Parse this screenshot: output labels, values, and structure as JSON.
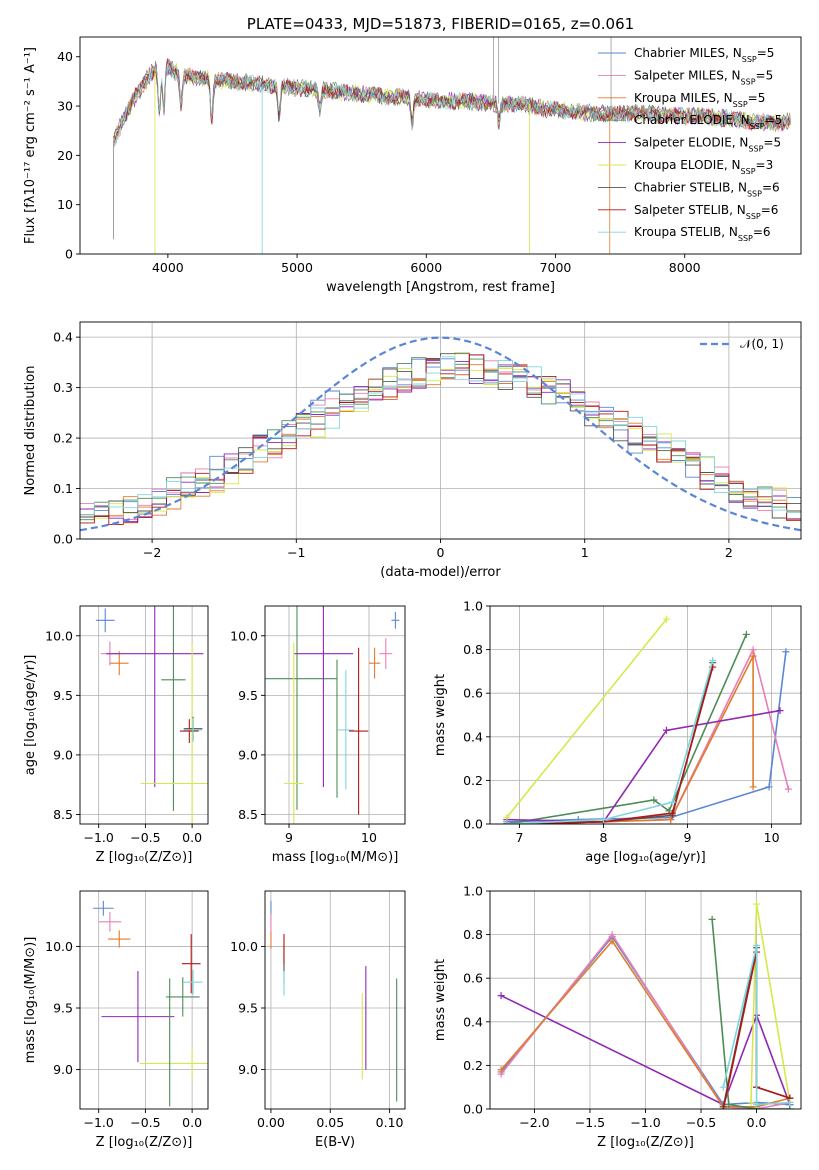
{
  "chart_data": [
    {
      "id": "spectrum",
      "type": "line",
      "title": "PLATE=0433, MJD=51873, FIBERID=0165, z=0.061",
      "xlabel": "wavelength [Angstrom, rest frame]",
      "ylabel": "Flux [fλ10⁻¹⁷ erg cm⁻² s⁻¹ A⁻¹]",
      "xlim": [
        3320,
        8900
      ],
      "ylim": [
        0,
        44
      ],
      "xticks": [
        4000,
        5000,
        6000,
        7000,
        8000
      ],
      "yticks": [
        0,
        10,
        20,
        30,
        40
      ],
      "grid": false,
      "legend_position": "top-right",
      "envelope": {
        "x": [
          3580,
          3650,
          3750,
          3850,
          3950,
          4050,
          4150,
          4300,
          4500,
          4700,
          4900,
          5100,
          5300,
          5500,
          5700,
          5900,
          6100,
          6300,
          6500,
          6700,
          6900,
          7100,
          7300,
          7500,
          7700,
          7900,
          8100,
          8300,
          8500,
          8700,
          8820
        ],
        "y": [
          23,
          27,
          32,
          36,
          39,
          37,
          36,
          35.5,
          35,
          34.5,
          34,
          33.5,
          33,
          32.5,
          32,
          31.5,
          31,
          31,
          30.5,
          30.5,
          29.5,
          29,
          28.5,
          28.5,
          28.5,
          28,
          28,
          27.5,
          27,
          26.5,
          27
        ]
      },
      "series": [
        {
          "name": "Chabrier MILES, N_SSP=5",
          "color": "#5b86d6"
        },
        {
          "name": "Salpeter MILES, N_SSP=5",
          "color": "#e87fb6"
        },
        {
          "name": "Kroupa MILES, N_SSP=5",
          "color": "#e27b2c"
        },
        {
          "name": "Chabrier ELODIE, N_SSP=5",
          "color": "#4d8c57"
        },
        {
          "name": "Salpeter ELODIE, N_SSP=5",
          "color": "#9128b4"
        },
        {
          "name": "Kroupa ELODIE, N_SSP=3",
          "color": "#d6e84a"
        },
        {
          "name": "Chabrier STELIB, N_SSP=6",
          "color": "#555555"
        },
        {
          "name": "Salpeter STELIB, N_SSP=6",
          "color": "#b01818"
        },
        {
          "name": "Kroupa STELIB, N_SSP=6",
          "color": "#7fd6dc"
        }
      ]
    },
    {
      "id": "residuals",
      "type": "line",
      "xlabel": "(data-model)/error",
      "ylabel": "Normed distribution",
      "xlim": [
        -2.5,
        2.5
      ],
      "ylim": [
        0,
        0.43
      ],
      "xticks": [
        -2,
        -1,
        0,
        1,
        2
      ],
      "yticks": [
        0.0,
        0.1,
        0.2,
        0.3,
        0.4
      ],
      "grid": true,
      "legend_position": "top-right",
      "legend_label": "𝒩(0, 1)",
      "gaussian_color": "#5b86d6",
      "bin_width": 0.1
    },
    {
      "id": "age_vs_Z",
      "type": "scatter",
      "xlabel": "Z [log₁₀(Z/Z⊙)]",
      "ylabel": "age  [log₁₀(age/yr)]",
      "xlim": [
        -1.2,
        0.17
      ],
      "ylim": [
        8.42,
        10.25
      ],
      "xticks": [
        -1.0,
        -0.5,
        0.0
      ],
      "yticks": [
        8.5,
        9.0,
        9.5,
        10.0
      ],
      "grid": true,
      "points": [
        {
          "x": -0.93,
          "xerr": 0.1,
          "y": 10.13,
          "yerr": 0.1,
          "color": "#5b86d6"
        },
        {
          "x": -0.88,
          "xerr": 0.1,
          "y": 9.85,
          "yerr": 0.1,
          "color": "#e87fb6"
        },
        {
          "x": -0.78,
          "xerr": 0.1,
          "y": 9.77,
          "yerr": 0.1,
          "color": "#e27b2c"
        },
        {
          "x": -0.2,
          "xerr": 0.13,
          "y": 9.63,
          "yerr": 1.1,
          "color": "#4d8c57"
        },
        {
          "x": -0.4,
          "xerr": 0.52,
          "y": 9.85,
          "yerr": 1.12,
          "color": "#9128b4"
        },
        {
          "x": 0.0,
          "xerr": 0.55,
          "y": 8.76,
          "yerr": 1.18,
          "color": "#d6e84a"
        },
        {
          "x": 0.01,
          "xerr": 0.1,
          "y": 9.22,
          "yerr": 0.1,
          "color": "#555555"
        },
        {
          "x": -0.03,
          "xerr": 0.1,
          "y": 9.2,
          "yerr": 0.1,
          "color": "#b01818"
        },
        {
          "x": 0.01,
          "xerr": 0.1,
          "y": 9.21,
          "yerr": 0.1,
          "color": "#7fd6dc"
        }
      ]
    },
    {
      "id": "age_vs_mass",
      "type": "scatter",
      "xlabel": "mass [log₁₀(M/M⊙)]",
      "ylabel": "",
      "xlim": [
        8.7,
        10.45
      ],
      "ylim": [
        8.42,
        10.25
      ],
      "xticks": [
        9,
        10
      ],
      "yticks": [
        8.5,
        9.0,
        9.5,
        10.0
      ],
      "grid": true,
      "points": [
        {
          "x": 10.33,
          "xerr": 0.05,
          "y": 10.13,
          "yerr": 0.07,
          "color": "#5b86d6"
        },
        {
          "x": 10.21,
          "xerr": 0.08,
          "y": 9.85,
          "yerr": 0.13,
          "color": "#e87fb6"
        },
        {
          "x": 10.07,
          "xerr": 0.07,
          "y": 9.77,
          "yerr": 0.13,
          "color": "#e27b2c"
        },
        {
          "x": 9.1,
          "xerr": 0.5,
          "y": 9.64,
          "yerr": 1.1,
          "color": "#4d8c57"
        },
        {
          "x": 9.43,
          "xerr": 0.37,
          "y": 9.85,
          "yerr": 1.12,
          "color": "#9128b4"
        },
        {
          "x": 9.06,
          "xerr": 0.12,
          "y": 8.76,
          "yerr": 1.18,
          "color": "#d6e84a"
        },
        {
          "x": 9.6,
          "xerr": 0.0,
          "y": 9.22,
          "yerr": 0.58,
          "color": "#4d8c57"
        },
        {
          "x": 9.87,
          "xerr": 0.12,
          "y": 9.2,
          "yerr": 0.7,
          "color": "#b01818"
        },
        {
          "x": 9.71,
          "xerr": 0.1,
          "y": 9.21,
          "yerr": 0.5,
          "color": "#7fd6dc"
        }
      ]
    },
    {
      "id": "weight_vs_age",
      "type": "line",
      "xlabel": "age  [log₁₀(age/yr)]",
      "ylabel": "mass weight",
      "xlim": [
        6.65,
        10.35
      ],
      "ylim": [
        0,
        1.0
      ],
      "xticks": [
        7,
        8,
        9,
        10
      ],
      "yticks": [
        0.0,
        0.2,
        0.4,
        0.6,
        0.8,
        1.0
      ],
      "grid": true,
      "series": [
        {
          "color": "#5b86d6",
          "x": [
            6.85,
            7.7,
            8.8,
            9.97,
            10.17
          ],
          "y": [
            0.01,
            0.02,
            0.03,
            0.17,
            0.79
          ]
        },
        {
          "color": "#e87fb6",
          "x": [
            6.85,
            8.0,
            8.8,
            9.78,
            10.2
          ],
          "y": [
            0.0,
            0.01,
            0.02,
            0.8,
            0.16
          ]
        },
        {
          "color": "#e27b2c",
          "x": [
            6.85,
            8.0,
            8.8,
            9.78,
            9.78
          ],
          "y": [
            0.0,
            0.01,
            0.02,
            0.77,
            0.17
          ]
        },
        {
          "color": "#4d8c57",
          "x": [
            6.85,
            8.6,
            8.78,
            9.7
          ],
          "y": [
            0.0,
            0.11,
            0.06,
            0.87
          ]
        },
        {
          "color": "#9128b4",
          "x": [
            6.85,
            8.0,
            8.75,
            10.1
          ],
          "y": [
            0.02,
            0.01,
            0.43,
            0.52
          ]
        },
        {
          "color": "#d6e84a",
          "x": [
            6.85,
            8.75
          ],
          "y": [
            0.03,
            0.94
          ]
        },
        {
          "color": "#555555",
          "x": [
            6.85,
            8.0,
            8.82,
            9.3
          ],
          "y": [
            0.0,
            0.01,
            0.04,
            0.74
          ]
        },
        {
          "color": "#b01818",
          "x": [
            6.85,
            8.0,
            8.82,
            9.3
          ],
          "y": [
            0.0,
            0.01,
            0.05,
            0.72
          ]
        },
        {
          "color": "#7fd6dc",
          "x": [
            6.85,
            8.0,
            8.82,
            9.3
          ],
          "y": [
            0.0,
            0.02,
            0.1,
            0.75
          ]
        }
      ]
    },
    {
      "id": "mass_vs_Z",
      "type": "scatter",
      "xlabel": "Z [log₁₀(Z/Z⊙)]",
      "ylabel": "mass [log₁₀(M/M⊙)]",
      "xlim": [
        -1.2,
        0.17
      ],
      "ylim": [
        8.68,
        10.45
      ],
      "xticks": [
        -1.0,
        -0.5,
        0.0
      ],
      "yticks": [
        9.0,
        9.5,
        10.0
      ],
      "grid": true,
      "points": [
        {
          "x": -0.95,
          "xerr": 0.11,
          "y": 10.31,
          "yerr": 0.06,
          "color": "#5b86d6"
        },
        {
          "x": -0.88,
          "xerr": 0.12,
          "y": 10.2,
          "yerr": 0.08,
          "color": "#e87fb6"
        },
        {
          "x": -0.78,
          "xerr": 0.12,
          "y": 10.06,
          "yerr": 0.07,
          "color": "#e27b2c"
        },
        {
          "x": -0.1,
          "xerr": 0.18,
          "y": 9.59,
          "yerr": 0.16,
          "color": "#4d8c57"
        },
        {
          "x": -0.58,
          "xerr": 0.39,
          "y": 9.43,
          "yerr": 0.37,
          "color": "#9128b4"
        },
        {
          "x": 0.0,
          "xerr": 0.56,
          "y": 9.05,
          "yerr": 0.12,
          "color": "#d6e84a"
        },
        {
          "x": -0.24,
          "xerr": 0.0,
          "y": 9.22,
          "yerr": 0.52,
          "color": "#4d8c57"
        },
        {
          "x": -0.01,
          "xerr": 0.1,
          "y": 9.86,
          "yerr": 0.24,
          "color": "#b01818"
        },
        {
          "x": 0.01,
          "xerr": 0.1,
          "y": 9.71,
          "yerr": 0.1,
          "color": "#7fd6dc"
        }
      ]
    },
    {
      "id": "mass_vs_ebv",
      "type": "scatter",
      "xlabel": "E(B-V)",
      "ylabel": "",
      "xlim": [
        -0.005,
        0.113
      ],
      "ylim": [
        8.68,
        10.45
      ],
      "xticks": [
        0.0,
        0.05,
        0.1
      ],
      "yticks": [
        9.0,
        9.5,
        10.0
      ],
      "grid": true,
      "points": [
        {
          "x": 0.0,
          "xerr": 0.0,
          "y": 10.31,
          "yerr": 0.06,
          "color": "#5b86d6"
        },
        {
          "x": 0.0,
          "xerr": 0.0,
          "y": 10.19,
          "yerr": 0.08,
          "color": "#e87fb6"
        },
        {
          "x": 0.0,
          "xerr": 0.0,
          "y": 10.05,
          "yerr": 0.07,
          "color": "#e27b2c"
        },
        {
          "x": 0.106,
          "xerr": 0.0,
          "y": 9.24,
          "yerr": 0.5,
          "color": "#4d8c57"
        },
        {
          "x": 0.08,
          "xerr": 0.0,
          "y": 9.42,
          "yerr": 0.42,
          "color": "#9128b4"
        },
        {
          "x": 0.077,
          "xerr": 0.0,
          "y": 9.27,
          "yerr": 0.35,
          "color": "#d6e84a"
        },
        {
          "x": 0.011,
          "xerr": 0.0,
          "y": 9.85,
          "yerr": 0.16,
          "color": "#555555"
        },
        {
          "x": 0.011,
          "xerr": 0.0,
          "y": 9.98,
          "yerr": 0.12,
          "color": "#b01818"
        },
        {
          "x": 0.011,
          "xerr": 0.0,
          "y": 9.7,
          "yerr": 0.1,
          "color": "#7fd6dc"
        }
      ]
    },
    {
      "id": "weight_vs_Z",
      "type": "line",
      "xlabel": "Z [log₁₀(Z/Z⊙)]",
      "ylabel": "mass weight",
      "xlim": [
        -2.4,
        0.4
      ],
      "ylim": [
        0,
        1.0
      ],
      "xticks": [
        -2.0,
        -1.5,
        -1.0,
        -0.5,
        0.0
      ],
      "yticks": [
        0.0,
        0.2,
        0.4,
        0.6,
        0.8,
        1.0
      ],
      "grid": true,
      "series": [
        {
          "color": "#9128b4",
          "x": [
            -2.3,
            -0.3,
            0.0,
            0.3
          ],
          "y": [
            0.52,
            0.02,
            0.43,
            0.02
          ]
        },
        {
          "color": "#5b86d6",
          "x": [
            -2.3,
            -1.3,
            -0.3,
            0.0,
            0.3
          ],
          "y": [
            0.17,
            0.79,
            0.02,
            0.03,
            0.02
          ]
        },
        {
          "color": "#e87fb6",
          "x": [
            -2.3,
            -1.3,
            -0.3,
            0.0,
            0.3
          ],
          "y": [
            0.16,
            0.8,
            0.01,
            0.0,
            0.03
          ]
        },
        {
          "color": "#e27b2c",
          "x": [
            -2.3,
            -1.3,
            -0.3,
            0.0,
            0.3
          ],
          "y": [
            0.18,
            0.77,
            0.01,
            0.01,
            0.05
          ]
        },
        {
          "color": "#4d8c57",
          "x": [
            -0.4,
            -0.25,
            0.0,
            0.3
          ],
          "y": [
            0.87,
            0.02,
            0.0,
            0.0
          ]
        },
        {
          "color": "#d6e84a",
          "x": [
            -0.05,
            0.0,
            0.3
          ],
          "y": [
            0.03,
            0.94,
            0.03
          ]
        },
        {
          "color": "#555555",
          "x": [
            -0.3,
            0.0,
            0.0,
            0.3
          ],
          "y": [
            0.01,
            0.74,
            0.1,
            0.05
          ]
        },
        {
          "color": "#b01818",
          "x": [
            -0.3,
            0.0,
            0.0,
            0.3
          ],
          "y": [
            0.0,
            0.72,
            0.1,
            0.05
          ]
        },
        {
          "color": "#7fd6dc",
          "x": [
            -0.3,
            0.0,
            0.0,
            0.3
          ],
          "y": [
            0.1,
            0.75,
            0.02,
            0.03
          ]
        }
      ]
    }
  ]
}
